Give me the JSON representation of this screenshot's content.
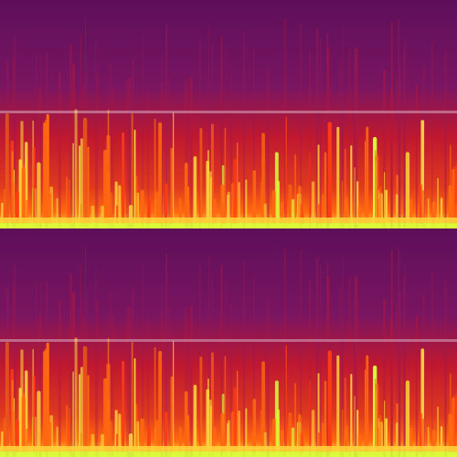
{
  "viewer": {
    "panels": [
      {
        "id": "top",
        "seed": 7
      },
      {
        "id": "bottom",
        "seed": 7
      }
    ],
    "colormap": "magma-like",
    "colors": {
      "background": "#5e0f5a",
      "low": "#7a1561",
      "mid": "#c0182f",
      "high": "#ff6a10",
      "peak": "#ffd23a",
      "max": "#d6ff3a",
      "divider": "rgba(255,255,255,0.35)"
    }
  }
}
